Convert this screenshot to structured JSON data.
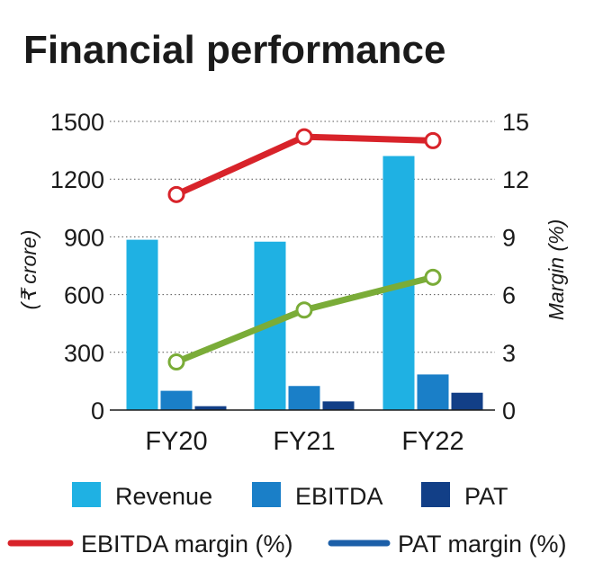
{
  "chart_data": {
    "type": "bar",
    "title": "Financial performance",
    "categories": [
      "FY20",
      "FY21",
      "FY22"
    ],
    "ylabel_left": "(₹ crore)",
    "ylabel_right": "Margin (%)",
    "ylim_left": [
      0,
      1500
    ],
    "ylim_right": [
      0,
      15
    ],
    "left_ticks": [
      "0",
      "300",
      "600",
      "900",
      "1200",
      "1500"
    ],
    "right_ticks": [
      "0",
      "3",
      "6",
      "9",
      "12",
      "15"
    ],
    "grid": true,
    "bar_series": [
      {
        "name": "Revenue",
        "color": "#1fb1e3",
        "values": [
          885,
          875,
          1320
        ]
      },
      {
        "name": "EBITDA",
        "color": "#1a7fc8",
        "values": [
          100,
          125,
          185
        ]
      },
      {
        "name": "PAT",
        "color": "#123f87",
        "values": [
          20,
          45,
          90
        ]
      }
    ],
    "line_series": [
      {
        "name": "EBITDA margin (%)",
        "color": "#d8232a",
        "axis": "right",
        "values": [
          11.2,
          14.2,
          14.0
        ]
      },
      {
        "name": "PAT margin (%)",
        "color": "#7aac38",
        "legend_color": "#1c5fa8",
        "axis": "right",
        "values": [
          2.5,
          5.2,
          6.9
        ]
      }
    ],
    "legend_position": "bottom"
  }
}
